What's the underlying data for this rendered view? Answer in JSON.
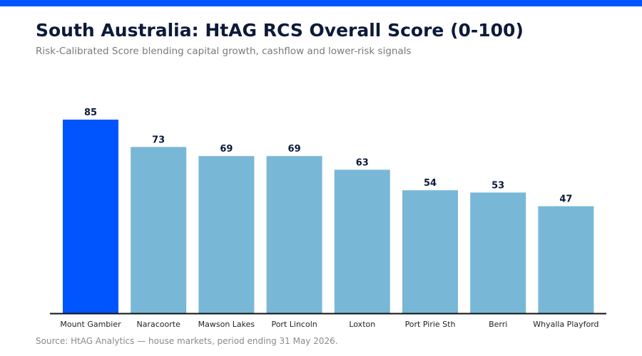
{
  "header": {
    "title": "South Australia: HtAG RCS Overall Score (0-100)",
    "subtitle": "Risk-Calibrated Score blending capital growth, cashflow and lower-risk signals"
  },
  "footer": {
    "source": "Source: HtAG Analytics — house markets, period ending 31 May 2026."
  },
  "colors": {
    "accent_bar": "#0055ff",
    "highlight": "#0055ff",
    "default_bar": "#79b7d7",
    "axis": "#111111",
    "value_label": "#0c1a3a",
    "tick_label": "#222222"
  },
  "chart_data": {
    "type": "bar",
    "categories": [
      "Mount Gambier",
      "Naracoorte",
      "Mawson Lakes",
      "Port Lincoln",
      "Loxton",
      "Port Pirie Sth",
      "Berri",
      "Whyalla Playford"
    ],
    "values": [
      85,
      73,
      69,
      69,
      63,
      54,
      53,
      47
    ],
    "highlight_index": 0,
    "title": "South Australia: HtAG RCS Overall Score (0-100)",
    "subtitle": "Risk-Calibrated Score blending capital growth, cashflow and lower-risk signals",
    "xlabel": "",
    "ylabel": "",
    "ylim": [
      0,
      85
    ],
    "grid": false,
    "data_labels": true
  }
}
